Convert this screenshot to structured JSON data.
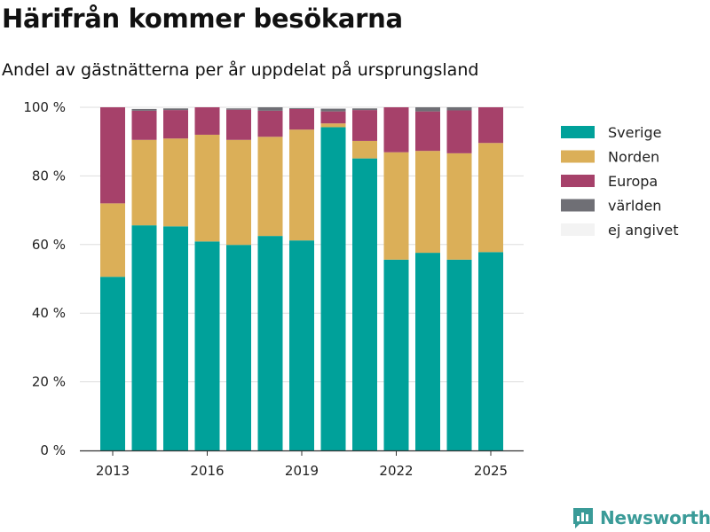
{
  "title": "Härifrån kommer besökarna",
  "subtitle": "Andel av gästnätterna per år uppdelat på ursprungsland",
  "brand": "Newsworthy",
  "chart_data": {
    "type": "bar",
    "stacked": true,
    "categories": [
      2013,
      2014,
      2015,
      2016,
      2017,
      2018,
      2019,
      2020,
      2021,
      2022,
      2023,
      2024,
      2025
    ],
    "x_tick_labels": [
      "2013",
      "2016",
      "2019",
      "2022",
      "2025"
    ],
    "x_tick_values": [
      2013,
      2016,
      2019,
      2022,
      2025
    ],
    "y_tick_labels": [
      "0 %",
      "20 %",
      "40 %",
      "60 %",
      "80 %",
      "100 %"
    ],
    "y_tick_values": [
      0,
      20,
      40,
      60,
      80,
      100
    ],
    "ylim": [
      0,
      100
    ],
    "grid": true,
    "legend_position": "right",
    "series": [
      {
        "name": "Sverige",
        "color": "#00a19a",
        "values": [
          50.6,
          65.6,
          65.3,
          60.9,
          59.9,
          62.5,
          61.2,
          94.2,
          85.1,
          55.6,
          57.6,
          55.6,
          57.8
        ]
      },
      {
        "name": "Norden",
        "color": "#dbaf58",
        "values": [
          21.4,
          24.9,
          25.6,
          31.1,
          30.6,
          28.9,
          32.3,
          1.1,
          5.1,
          31.3,
          29.7,
          31.0,
          31.8
        ]
      },
      {
        "name": "Europa",
        "color": "#a6416a",
        "values": [
          28.0,
          8.5,
          8.3,
          8.0,
          8.8,
          7.6,
          6.0,
          3.5,
          9.0,
          13.1,
          11.5,
          12.5,
          10.4
        ]
      },
      {
        "name": "världen",
        "color": "#6f6f75",
        "values": [
          0.0,
          0.5,
          0.5,
          0.0,
          0.4,
          1.0,
          0.3,
          0.8,
          0.5,
          0.0,
          1.2,
          0.9,
          0.0
        ]
      },
      {
        "name": "ej angivet",
        "color": "#f3f3f3",
        "values": [
          0.0,
          0.5,
          0.3,
          0.0,
          0.3,
          0.0,
          0.2,
          0.4,
          0.3,
          0.0,
          0.0,
          0.0,
          0.0
        ]
      }
    ]
  }
}
